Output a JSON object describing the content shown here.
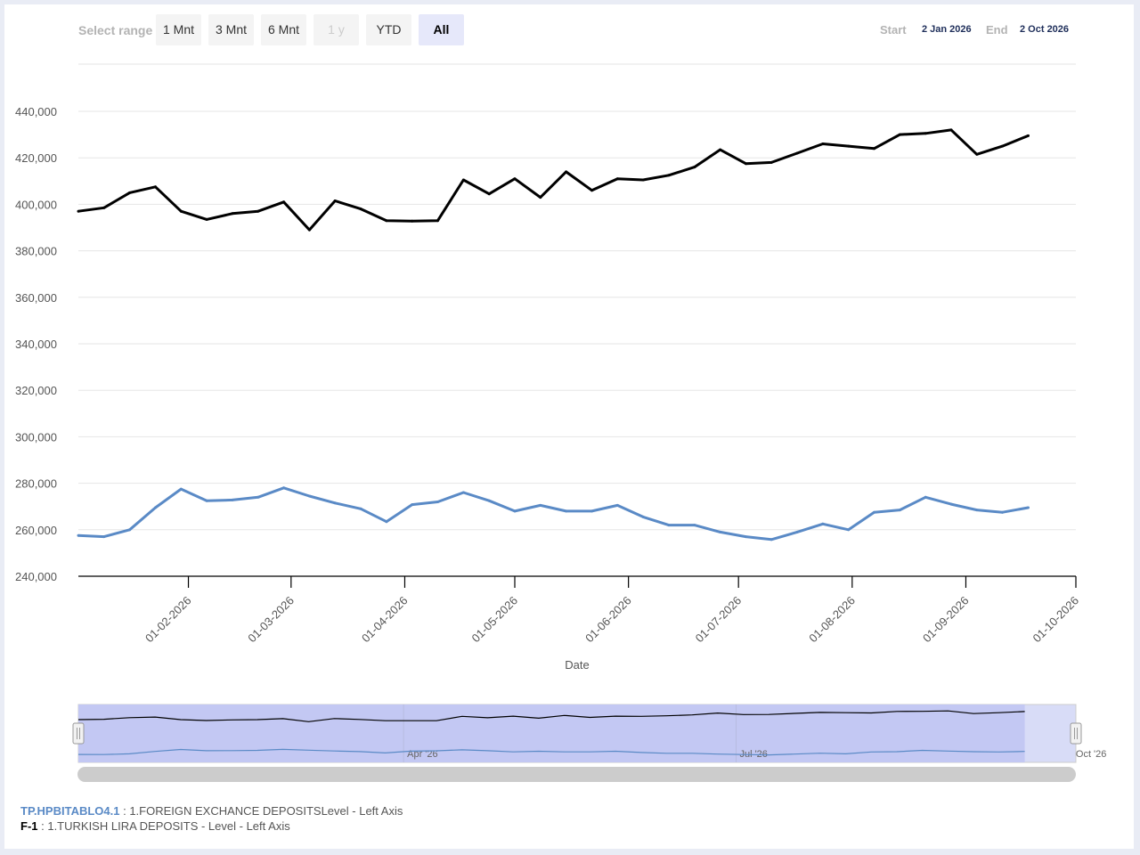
{
  "toolbar": {
    "range_label": "Select range",
    "buttons": [
      {
        "label": "1 Mnt",
        "state": "normal"
      },
      {
        "label": "3 Mnt",
        "state": "normal"
      },
      {
        "label": "6 Mnt",
        "state": "normal"
      },
      {
        "label": "1 y",
        "state": "disabled"
      },
      {
        "label": "YTD",
        "state": "normal"
      },
      {
        "label": "All",
        "state": "active"
      }
    ],
    "start_label": "Start",
    "start_value": "2 Jan 2026",
    "end_label": "End",
    "end_value": "2 Oct 2026"
  },
  "chart_data": {
    "type": "line",
    "xlabel": "Date",
    "ylabel": "",
    "ylim": [
      240000,
      440000
    ],
    "yticks": [
      "240,000",
      "260,000",
      "280,000",
      "300,000",
      "320,000",
      "340,000",
      "360,000",
      "380,000",
      "400,000",
      "420,000",
      "440,000"
    ],
    "xticks": [
      "01-02-2026",
      "01-03-2026",
      "01-04-2026",
      "01-05-2026",
      "01-06-2026",
      "01-07-2026",
      "01-08-2026",
      "01-09-2026",
      "01-10-2026"
    ],
    "grid": true,
    "x": [
      "2026-01-02",
      "2026-01-09",
      "2026-01-16",
      "2026-01-23",
      "2026-01-30",
      "2026-02-06",
      "2026-02-13",
      "2026-02-20",
      "2026-02-27",
      "2026-03-06",
      "2026-03-13",
      "2026-03-20",
      "2026-03-27",
      "2026-04-03",
      "2026-04-10",
      "2026-04-17",
      "2026-04-24",
      "2026-05-01",
      "2026-05-08",
      "2026-05-15",
      "2026-05-22",
      "2026-05-29",
      "2026-06-05",
      "2026-06-12",
      "2026-06-19",
      "2026-06-26",
      "2026-07-03",
      "2026-07-10",
      "2026-07-17",
      "2026-07-24",
      "2026-07-31",
      "2026-08-07",
      "2026-08-14",
      "2026-08-21",
      "2026-08-28",
      "2026-09-04",
      "2026-09-11",
      "2026-09-18"
    ],
    "series": [
      {
        "name": "1.FOREIGN EXCHANCE DEPOSITSLevel",
        "color": "#000000",
        "values": [
          397000,
          398500,
          405000,
          407500,
          397000,
          393500,
          396000,
          397000,
          401000,
          389000,
          401500,
          398000,
          393000,
          392800,
          393000,
          410500,
          404500,
          411000,
          403000,
          414000,
          406000,
          411000,
          410500,
          412500,
          416000,
          423500,
          417500,
          418000,
          422000,
          426000,
          425000,
          424000,
          430000,
          430500,
          432000,
          421500,
          425000,
          429500
        ]
      },
      {
        "name": "1.TURKISH LIRA DEPOSITS - Level",
        "color": "#5a8ac6",
        "values": [
          257500,
          257000,
          260000,
          269500,
          277500,
          272500,
          272800,
          274000,
          278000,
          274500,
          271500,
          269000,
          263500,
          270800,
          272000,
          276000,
          272500,
          268000,
          270500,
          268000,
          268000,
          270500,
          265500,
          262000,
          262000,
          259000,
          257000,
          255800,
          259000,
          262500,
          260000,
          267500,
          268500,
          274000,
          271000,
          268500,
          267500,
          269500
        ]
      }
    ]
  },
  "navigator": {
    "labels": [
      "Apr '26",
      "Jul '26",
      "Oct '26"
    ]
  },
  "legend": [
    {
      "code": "TP.HPBITABLO4.1",
      "text": " : 1.FOREIGN EXCHANCE DEPOSITSLevel - Left Axis"
    },
    {
      "code": "F-1",
      "text": " : 1.TURKISH LIRA DEPOSITS - Level - Left Axis"
    }
  ]
}
